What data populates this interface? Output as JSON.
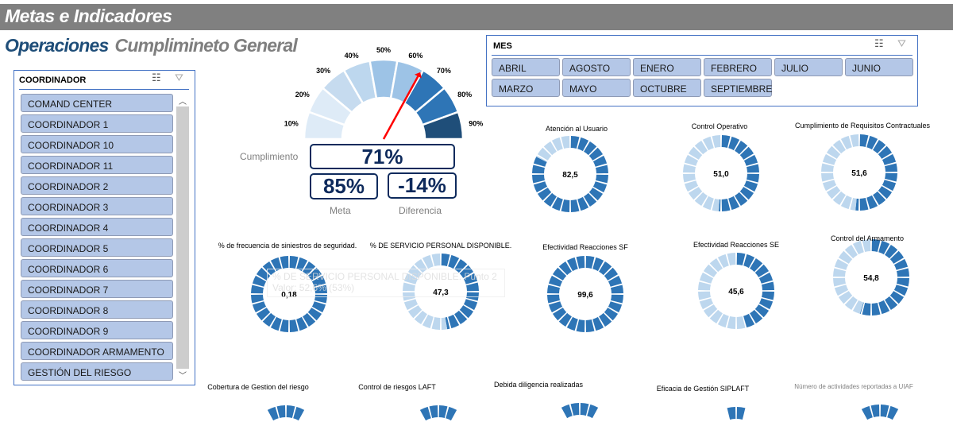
{
  "header": {
    "title": "Metas e Indicadores"
  },
  "subtitle": {
    "area": "Operaciones",
    "section": "Cumplimineto General"
  },
  "coordinador_slicer": {
    "title": "COORDINADOR",
    "items": [
      "COMAND CENTER",
      "COORDINADOR 1",
      "COORDINADOR 10",
      "COORDINADOR 11",
      "COORDINADOR 2",
      "COORDINADOR 3",
      "COORDINADOR 4",
      "COORDINADOR 5",
      "COORDINADOR 6",
      "COORDINADOR 7",
      "COORDINADOR 8",
      "COORDINADOR 9",
      "COORDINADOR ARMAMENTO",
      "GESTIÓN DEL RIESGO"
    ]
  },
  "mes_slicer": {
    "title": "MES",
    "items": [
      "ABRIL",
      "AGOSTO",
      "ENERO",
      "FEBRERO",
      "JULIO",
      "JUNIO",
      "MARZO",
      "MAYO",
      "OCTUBRE",
      "SEPTIEMBRE"
    ]
  },
  "gauge": {
    "labels": [
      "10%",
      "20%",
      "30%",
      "40%",
      "50%",
      "60%",
      "70%",
      "80%",
      "90%"
    ],
    "colors": [
      "#deebf7",
      "#deebf7",
      "#c6dbef",
      "#bdd7ee",
      "#9dc3e6",
      "#9dc3e6",
      "#2e75b6",
      "#2e75b6",
      "#1f4e79"
    ],
    "needle_value": 71,
    "needle_color": "#ff0000"
  },
  "kpis": {
    "cumplimiento_label": "Cumplimiento",
    "cumplimiento": "71%",
    "meta": "85%",
    "meta_label": "Meta",
    "diferencia": "-14%",
    "diferencia_label": "Diferencia"
  },
  "colors": {
    "dark": "#2e75b6",
    "light": "#bdd7ee"
  },
  "tooltip": {
    "line1": "% DE SERVICIO PERSONAL DISPONIBLE. Punto 2",
    "line2": "Valor: 52,6% (53%)"
  },
  "donuts": [
    {
      "title": "Atención al Usuario",
      "value": "82,5",
      "pct": 82.5
    },
    {
      "title": "Control Operativo",
      "value": "51,0",
      "pct": 51.0
    },
    {
      "title": "Cumplimiento de Requisitos Contractuales",
      "value": "51,6",
      "pct": 51.6
    },
    {
      "title": "% de frecuencia de siniestros de seguridad.",
      "value": "0,18",
      "pct": 100
    },
    {
      "title": "% DE SERVICIO PERSONAL DISPONIBLE.",
      "value": "47,3",
      "pct": 47.3
    },
    {
      "title": "Efectividad Reacciones SF",
      "value": "99,6",
      "pct": 99.6
    },
    {
      "title": "Efectividad Reacciones SE",
      "value": "45,6",
      "pct": 45.6
    },
    {
      "title": "Control del Armamento",
      "value": "54,8",
      "pct": 54.8
    },
    {
      "title": "Cobertura de Gestion del riesgo",
      "value": "",
      "pct": 100
    },
    {
      "title": "Control de riesgos LAFT",
      "value": "",
      "pct": 100
    },
    {
      "title": "Debida diligencia realizadas",
      "value": "",
      "pct": 100
    },
    {
      "title": "Eficacia de Gestión SIPLAFT",
      "value": "",
      "pct": 100
    },
    {
      "title": "Número de actividades reportadas a UIAF",
      "value": "",
      "pct": 100
    }
  ]
}
